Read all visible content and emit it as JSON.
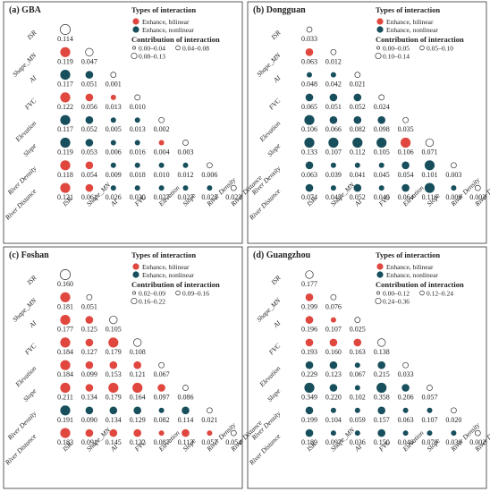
{
  "colors": {
    "bilinear": "#e0473e",
    "nonlinear": "#184f5c",
    "open": "#ffffff"
  },
  "variables": [
    "ISR",
    "Shape_MN",
    "AI",
    "FVC",
    "Elevation",
    "Slope",
    "River Density",
    "River Distance"
  ],
  "legend": {
    "types_title": "Types of interaction",
    "bilinear_label": "Enhance, bilinear",
    "nonlinear_label": "Enhance, nonlinear",
    "contrib_title": "Contribution of interaction"
  },
  "chart_data": [
    {
      "type": "triangular-bubble-matrix",
      "title": "(a) GBA",
      "size_classes": [
        "0.00–0.04",
        "0.04–0.08",
        "0.08–0.13"
      ],
      "size_breaks": [
        0.04,
        0.08,
        0.13
      ],
      "values": [
        [
          0.114
        ],
        [
          0.119,
          0.047
        ],
        [
          0.117,
          0.051,
          0.001
        ],
        [
          0.122,
          0.056,
          0.013,
          0.01
        ],
        [
          0.117,
          0.052,
          0.005,
          0.013,
          0.002
        ],
        [
          0.119,
          0.053,
          0.006,
          0.016,
          0.004,
          0.003
        ],
        [
          0.118,
          0.054,
          0.009,
          0.018,
          0.01,
          0.012,
          0.006
        ],
        [
          0.121,
          0.061,
          0.026,
          0.03,
          0.027,
          0.027,
          0.025,
          0.023
        ]
      ],
      "types": [
        [
          "O"
        ],
        [
          "B",
          "O"
        ],
        [
          "N",
          "N",
          "O"
        ],
        [
          "B",
          "B",
          "B",
          "O"
        ],
        [
          "N",
          "N",
          "N",
          "N",
          "O"
        ],
        [
          "N",
          "N",
          "N",
          "N",
          "B",
          "O"
        ],
        [
          "B",
          "B",
          "N",
          "N",
          "N",
          "N",
          "O"
        ],
        [
          "B",
          "B",
          "N",
          "N",
          "N",
          "N",
          "N",
          "O"
        ]
      ]
    },
    {
      "type": "triangular-bubble-matrix",
      "title": "(b) Dongguan",
      "size_classes": [
        "0.00–0.05",
        "0.05–0.10",
        "0.10–0.14"
      ],
      "size_breaks": [
        0.05,
        0.1,
        0.14
      ],
      "values": [
        [
          0.033
        ],
        [
          0.063,
          0.012
        ],
        [
          0.048,
          0.042,
          0.021
        ],
        [
          0.065,
          0.051,
          0.052,
          0.024
        ],
        [
          0.106,
          0.066,
          0.082,
          0.098,
          0.035
        ],
        [
          0.133,
          0.107,
          0.112,
          0.105,
          0.106,
          0.071
        ],
        [
          0.063,
          0.039,
          0.041,
          0.045,
          0.054,
          0.101,
          0.003
        ],
        [
          0.074,
          0.045,
          0.052,
          0.049,
          0.064,
          0.116,
          0.009,
          0.003
        ]
      ],
      "types": [
        [
          "O"
        ],
        [
          "B",
          "O"
        ],
        [
          "N",
          "N",
          "O"
        ],
        [
          "N",
          "N",
          "N",
          "O"
        ],
        [
          "N",
          "N",
          "N",
          "N",
          "O"
        ],
        [
          "N",
          "N",
          "N",
          "N",
          "B",
          "O"
        ],
        [
          "N",
          "N",
          "N",
          "N",
          "N",
          "N",
          "O"
        ],
        [
          "N",
          "N",
          "N",
          "N",
          "N",
          "N",
          "N",
          "O"
        ]
      ]
    },
    {
      "type": "triangular-bubble-matrix",
      "title": "(c) Foshan",
      "size_classes": [
        "0.02–0.09",
        "0.09–0.16",
        "0.16–0.22"
      ],
      "size_breaks": [
        0.09,
        0.16,
        0.22
      ],
      "values": [
        [
          0.16
        ],
        [
          0.181,
          0.051
        ],
        [
          0.177,
          0.125,
          0.105
        ],
        [
          0.184,
          0.127,
          0.179,
          0.108
        ],
        [
          0.184,
          0.099,
          0.153,
          0.121,
          0.067
        ],
        [
          0.211,
          0.134,
          0.179,
          0.164,
          0.097,
          0.086
        ],
        [
          0.191,
          0.09,
          0.134,
          0.129,
          0.082,
          0.114,
          0.021
        ],
        [
          0.183,
          0.091,
          0.145,
          0.122,
          0.087,
          0.113,
          0.057,
          0.054
        ]
      ],
      "types": [
        [
          "O"
        ],
        [
          "B",
          "O"
        ],
        [
          "B",
          "B",
          "O"
        ],
        [
          "B",
          "B",
          "B",
          "O"
        ],
        [
          "B",
          "B",
          "B",
          "B",
          "O"
        ],
        [
          "B",
          "B",
          "B",
          "B",
          "B",
          "O"
        ],
        [
          "N",
          "N",
          "N",
          "N",
          "N",
          "N",
          "O"
        ],
        [
          "B",
          "B",
          "B",
          "B",
          "B",
          "B",
          "B",
          "O"
        ]
      ]
    },
    {
      "type": "triangular-bubble-matrix",
      "title": "(d) Guangzhou",
      "size_classes": [
        "0.00–0.12",
        "0.12–0.24",
        "0.24–0.36"
      ],
      "size_breaks": [
        0.12,
        0.24,
        0.36
      ],
      "values": [
        [
          0.177
        ],
        [
          0.199,
          0.076
        ],
        [
          0.196,
          0.107,
          0.025
        ],
        [
          0.193,
          0.16,
          0.163,
          0.138
        ],
        [
          0.229,
          0.123,
          0.067,
          0.215,
          0.033
        ],
        [
          0.349,
          0.22,
          0.102,
          0.358,
          0.206,
          0.057
        ],
        [
          0.199,
          0.104,
          0.059,
          0.157,
          0.063,
          0.107,
          0.02
        ],
        [
          0.189,
          0.097,
          0.036,
          0.15,
          0.04,
          0.078,
          0.03,
          0.002
        ]
      ],
      "types": [
        [
          "O"
        ],
        [
          "B",
          "O"
        ],
        [
          "B",
          "B",
          "O"
        ],
        [
          "B",
          "B",
          "B",
          "O"
        ],
        [
          "N",
          "N",
          "N",
          "N",
          "O"
        ],
        [
          "N",
          "N",
          "N",
          "N",
          "N",
          "O"
        ],
        [
          "N",
          "N",
          "N",
          "N",
          "N",
          "N",
          "O"
        ],
        [
          "N",
          "N",
          "N",
          "N",
          "N",
          "N",
          "N",
          "O"
        ]
      ]
    }
  ]
}
